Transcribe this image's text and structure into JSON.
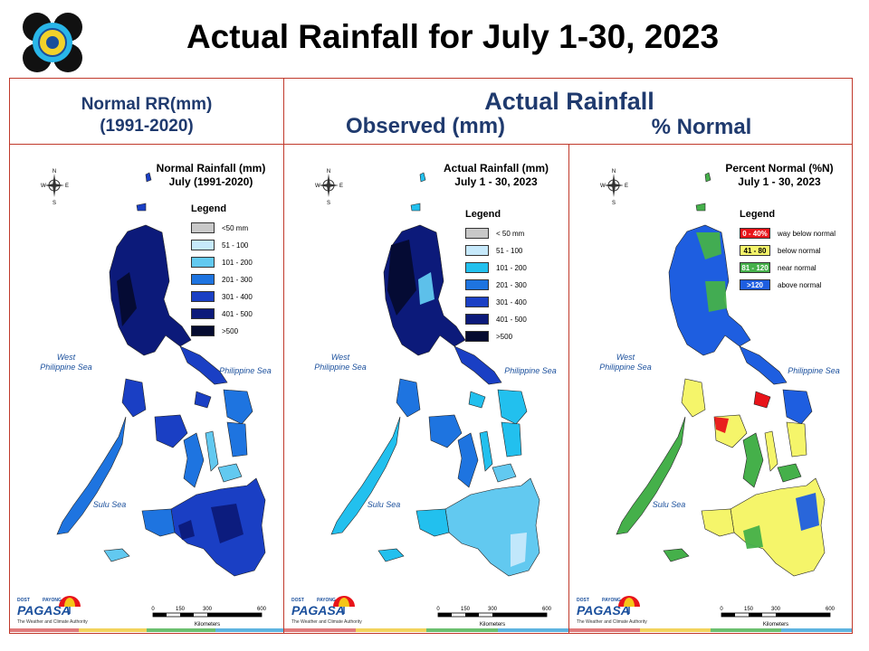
{
  "title": "Actual Rainfall for July 1-30, 2023",
  "headers": {
    "normal_line1": "Normal RR(mm)",
    "normal_line2": "(1991-2020)",
    "actual": "Actual Rainfall",
    "observed": "Observed (mm)",
    "percent": "% Normal"
  },
  "panels": [
    {
      "title_line1": "Normal Rainfall (mm)",
      "title_line2": "July (1991-2020)",
      "legend_title": "Legend",
      "legend": [
        {
          "label": "<50 mm",
          "color": "#c8c8c8"
        },
        {
          "label": "51 - 100",
          "color": "#c6e9fb"
        },
        {
          "label": "101 - 200",
          "color": "#62c9f0"
        },
        {
          "label": "201 - 300",
          "color": "#1e74e0"
        },
        {
          "label": "301 - 400",
          "color": "#1a3fc4"
        },
        {
          "label": "401 - 500",
          "color": "#0c1a7a"
        },
        {
          "label": ">500",
          "color": "#050b30"
        }
      ]
    },
    {
      "title_line1": "Actual Rainfall (mm)",
      "title_line2": "July 1 - 30, 2023",
      "legend_title": "Legend",
      "legend": [
        {
          "label": "< 50 mm",
          "color": "#c8c8c8"
        },
        {
          "label": "51 - 100",
          "color": "#c6e9fb"
        },
        {
          "label": "101 - 200",
          "color": "#22c0ee"
        },
        {
          "label": "201 - 300",
          "color": "#1e74e0"
        },
        {
          "label": "301 - 400",
          "color": "#1a3fc4"
        },
        {
          "label": "401 - 500",
          "color": "#0c1a7a"
        },
        {
          "label": ">500",
          "color": "#050b30"
        }
      ]
    },
    {
      "title_line1": "Percent Normal (%N)",
      "title_line2": "July 1 - 30, 2023",
      "legend_title": "Legend",
      "legend": [
        {
          "swatch": "0 - 40%",
          "label": "way below normal",
          "color": "#e8141a"
        },
        {
          "swatch": "41 - 80",
          "label": "below normal",
          "color": "#f5f56a"
        },
        {
          "swatch": "81 - 120",
          "label": "near normal",
          "color": "#45b04a"
        },
        {
          "swatch": ">120",
          "label": "above normal",
          "color": "#1e5ee0"
        }
      ]
    }
  ],
  "seas": {
    "west_line1": "West",
    "west_line2": "Philippine Sea",
    "east": "Philippine Sea",
    "sulu": "Sulu Sea"
  },
  "compass": {
    "n": "N",
    "s": "S",
    "e": "E",
    "w": "W"
  },
  "scale": {
    "t0": "0",
    "t1": "150",
    "t2": "300",
    "t3": "600",
    "unit": "Kilometers"
  },
  "brand": {
    "name": "PAGASA",
    "dost": "DOST",
    "payong": "PAYONG",
    "tagline": "The Weather and Climate Authority"
  },
  "colors": {
    "frame": "#c0392b",
    "header_text": "#1f3a6e"
  }
}
